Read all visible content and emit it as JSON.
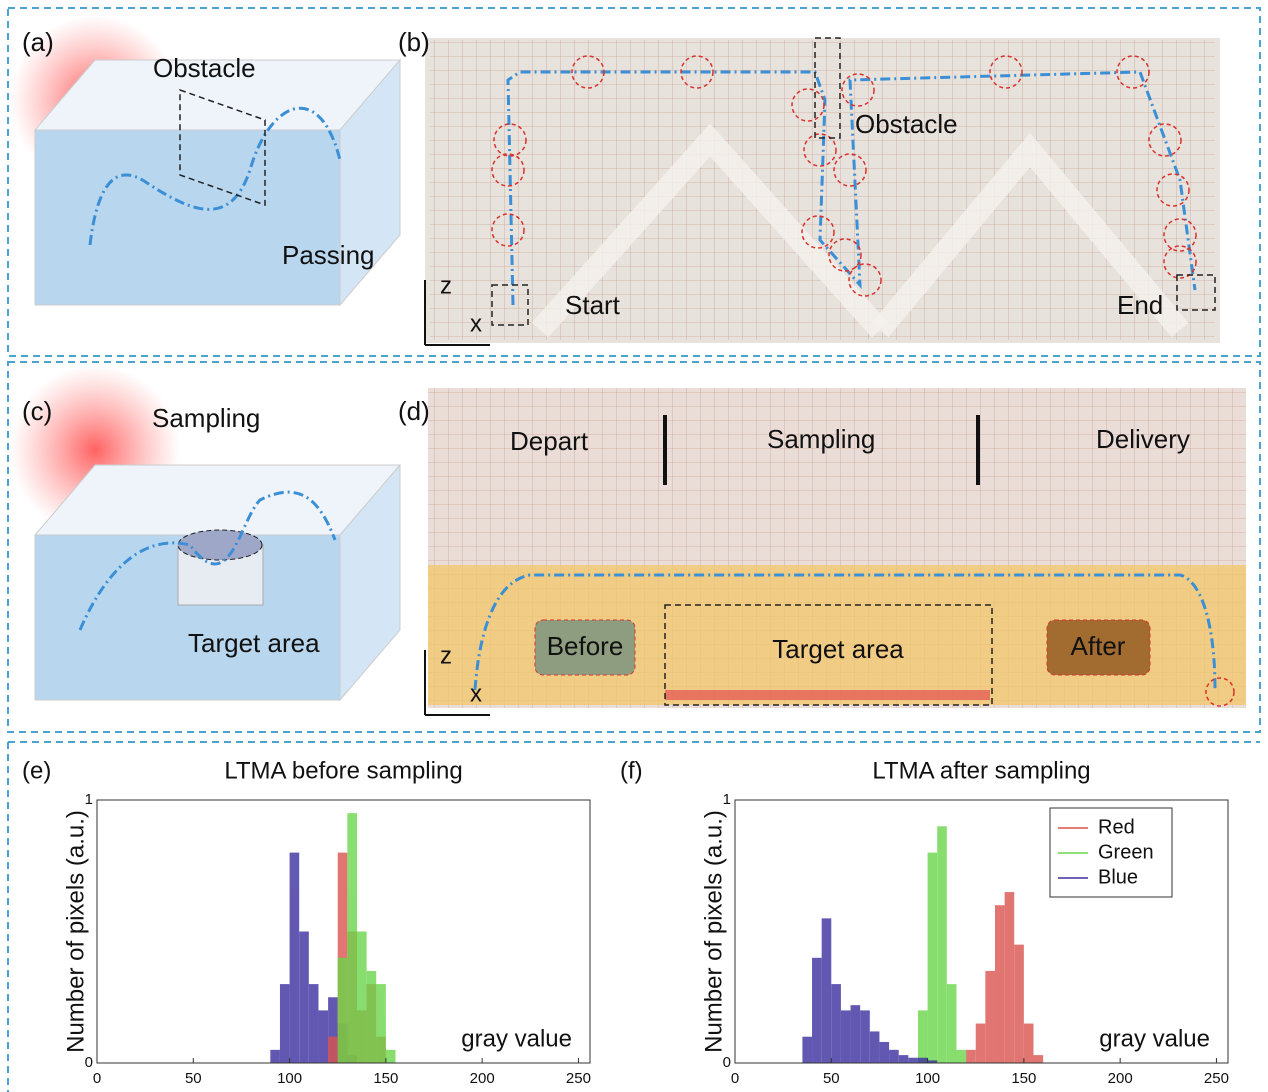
{
  "panels": {
    "a": {
      "label": "(a)",
      "obstacle": "Obstacle",
      "passing": "Passing"
    },
    "b": {
      "label": "(b)",
      "obstacle": "Obstacle",
      "start": "Start",
      "end": "End",
      "z": "z",
      "x": "x"
    },
    "c": {
      "label": "(c)",
      "sampling": "Sampling",
      "target": "Target area"
    },
    "d": {
      "label": "(d)",
      "depart": "Depart",
      "sampling": "Sampling",
      "delivery": "Delivery",
      "before": "Before",
      "target": "Target area",
      "after": "After",
      "z": "z",
      "x": "x"
    }
  },
  "chart_data": [
    {
      "type": "histogram",
      "panel_label": "(e)",
      "title": "LTMA before sampling",
      "ylabel": "Number of pixels (a.u.)",
      "xlabel": "gray value",
      "xlim": [
        0,
        256
      ],
      "xticks": [
        0,
        50,
        100,
        150,
        200,
        250
      ],
      "ylim": [
        0,
        1
      ],
      "yticks": [
        0,
        1
      ],
      "bins": [
        90,
        95,
        100,
        105,
        110,
        115,
        120,
        125,
        130,
        135,
        140,
        145,
        150,
        155,
        160
      ],
      "series": [
        {
          "name": "Blue",
          "color": "#3b2fa0",
          "values": [
            0.05,
            0.3,
            0.8,
            0.5,
            0.3,
            0.2,
            0.25,
            0.15,
            0.03,
            0,
            0,
            0,
            0,
            0
          ]
        },
        {
          "name": "Red",
          "color": "#d9534f",
          "values": [
            0,
            0,
            0,
            0,
            0,
            0,
            0.1,
            0.8,
            0.5,
            0.2,
            0.3,
            0.1,
            0,
            0
          ]
        },
        {
          "name": "Green",
          "color": "#6ad64a",
          "values": [
            0,
            0,
            0,
            0,
            0,
            0,
            0,
            0.4,
            0.95,
            0.5,
            0.35,
            0.3,
            0.05,
            0
          ]
        }
      ]
    },
    {
      "type": "histogram",
      "panel_label": "(f)",
      "title": "LTMA after sampling",
      "ylabel": "Number of pixels (a.u.)",
      "xlabel": "gray value",
      "xlim": [
        0,
        256
      ],
      "xticks": [
        0,
        50,
        100,
        150,
        200,
        250
      ],
      "ylim": [
        0,
        1
      ],
      "yticks": [
        0,
        1
      ],
      "legend": "upper right",
      "bins": [
        35,
        40,
        45,
        50,
        55,
        60,
        65,
        70,
        75,
        80,
        85,
        90,
        95,
        100,
        105,
        110,
        115,
        120,
        125,
        130,
        135,
        140,
        145,
        150,
        155,
        160,
        165
      ],
      "series": [
        {
          "name": "Red",
          "color": "#d9534f",
          "values": [
            0,
            0,
            0,
            0,
            0,
            0,
            0,
            0,
            0,
            0,
            0,
            0,
            0,
            0,
            0,
            0,
            0,
            0.05,
            0.15,
            0.35,
            0.6,
            0.65,
            0.45,
            0.15,
            0.03,
            0
          ]
        },
        {
          "name": "Green",
          "color": "#6ad64a",
          "values": [
            0,
            0,
            0,
            0,
            0,
            0,
            0,
            0,
            0,
            0,
            0,
            0,
            0.2,
            0.8,
            0.9,
            0.3,
            0.05,
            0,
            0,
            0,
            0,
            0,
            0,
            0,
            0,
            0
          ]
        },
        {
          "name": "Blue",
          "color": "#3b2fa0",
          "values": [
            0.1,
            0.4,
            0.55,
            0.3,
            0.2,
            0.22,
            0.2,
            0.12,
            0.08,
            0.05,
            0.03,
            0.02,
            0.02,
            0.01,
            0,
            0,
            0,
            0,
            0,
            0,
            0,
            0,
            0,
            0,
            0,
            0
          ]
        }
      ]
    }
  ]
}
